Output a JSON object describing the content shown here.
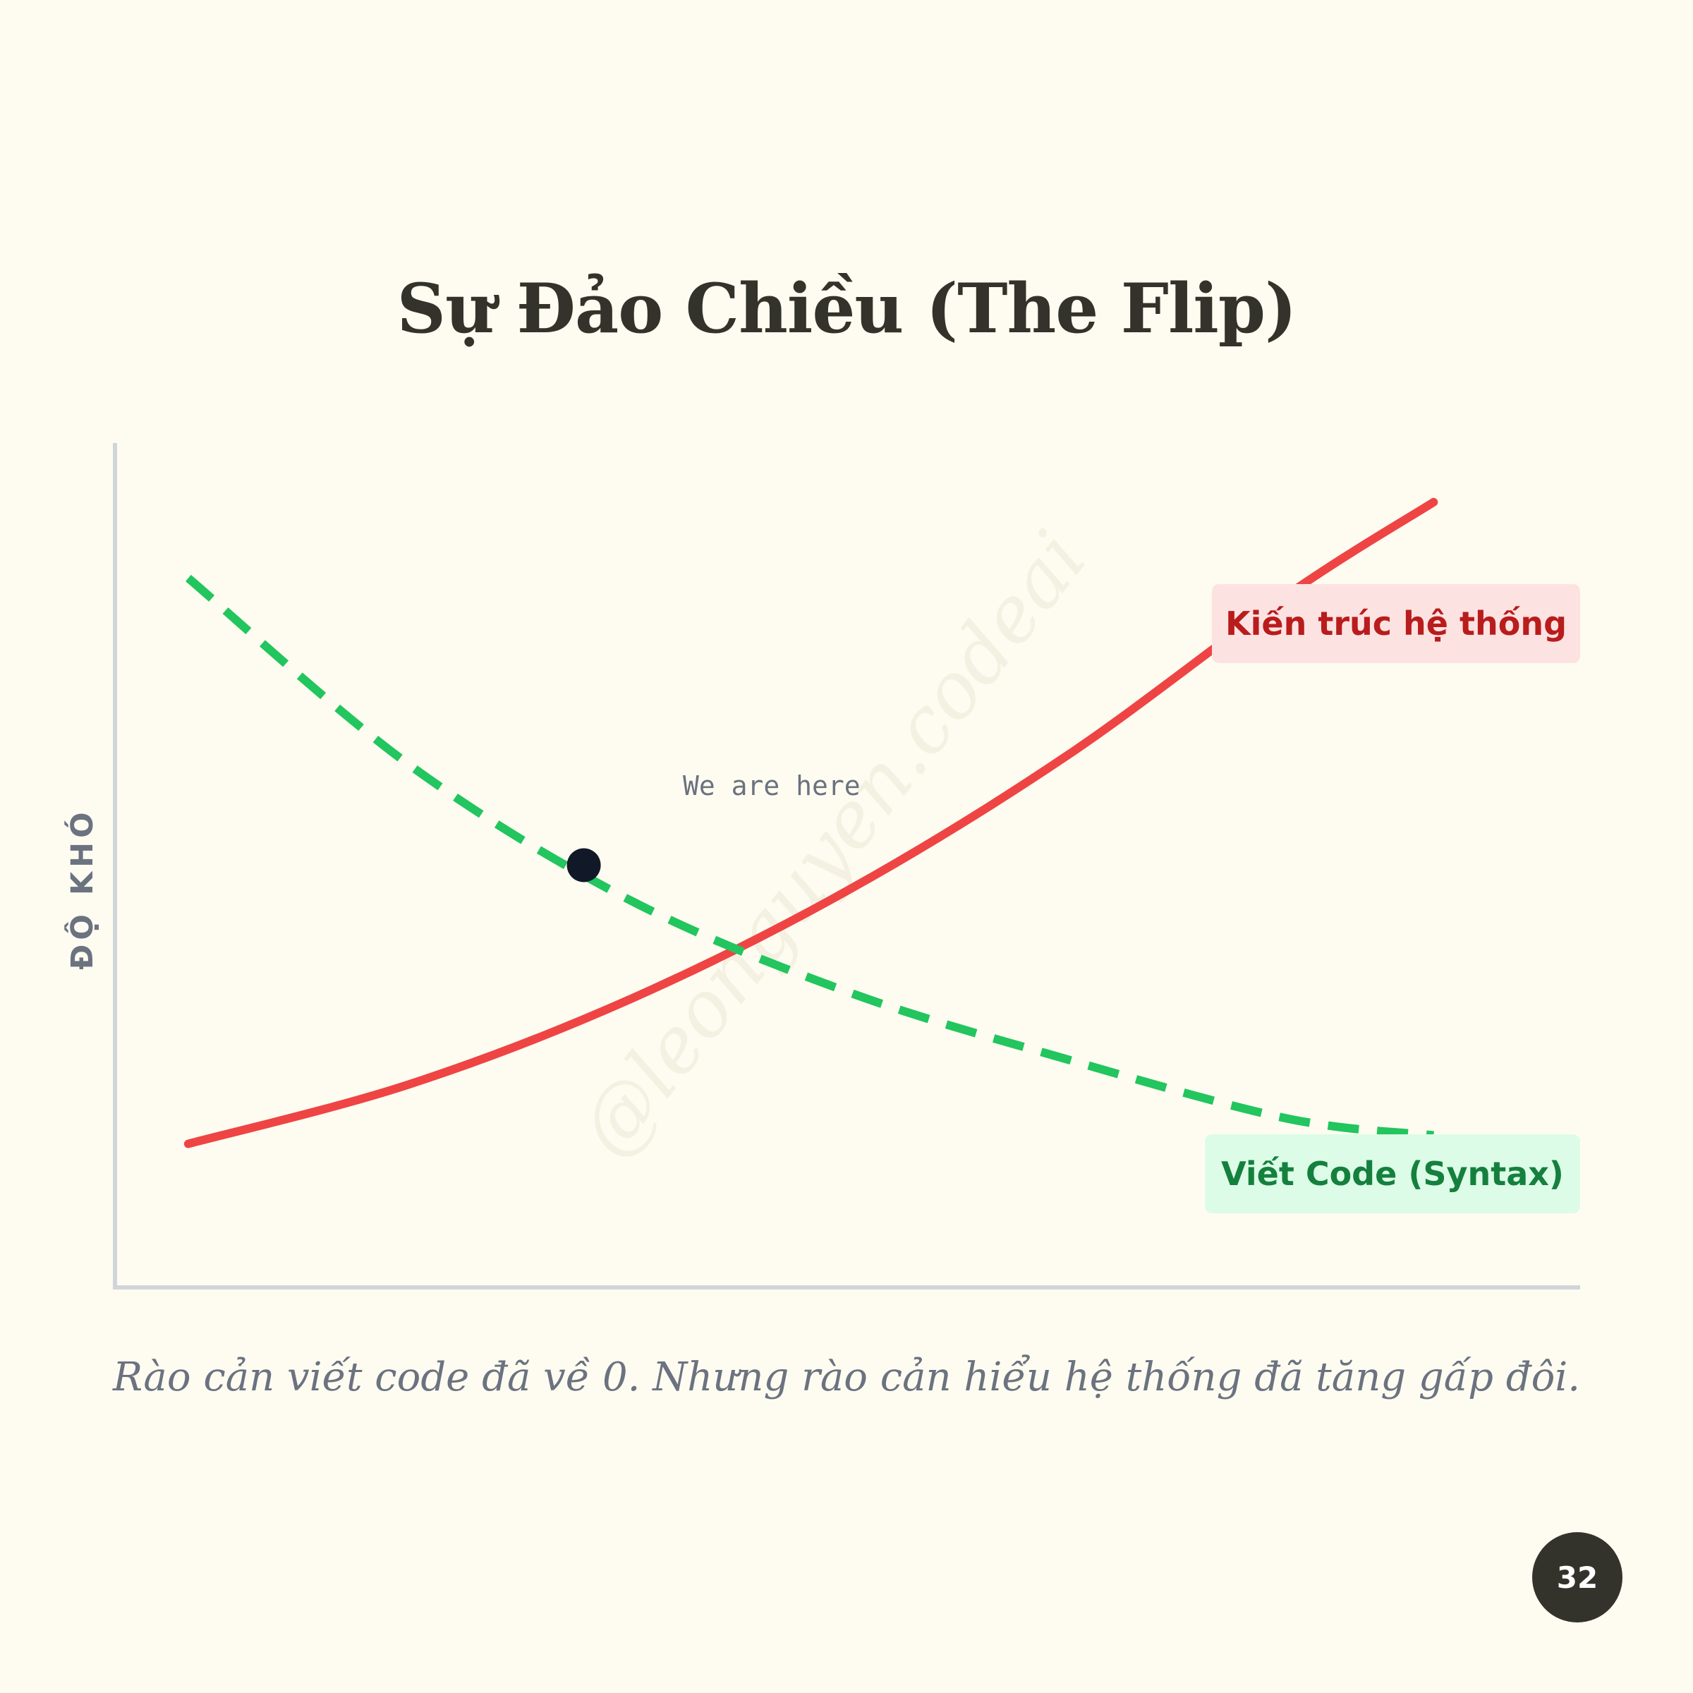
{
  "title": "Sự Đảo Chiều (The Flip)",
  "caption": "Rào cản viết code đã về 0. Nhưng rào cản hiểu hệ thống đã tăng gấp đôi.",
  "page_number": "32",
  "watermark": "@leonguyen.codeai",
  "chart_data": {
    "type": "line",
    "ylabel": "ĐỘ KHÓ",
    "xlabel": "",
    "annotation": {
      "label": "We are here",
      "x": 3.2,
      "y": 5.0
    },
    "xlim": [
      0,
      10
    ],
    "ylim": [
      0,
      10
    ],
    "series": [
      {
        "name": "Kiến trúc hệ thống",
        "style": "solid",
        "color": "#ef4444",
        "x": [
          0.5,
          2,
          3.5,
          5,
          6.5,
          8,
          9
        ],
        "y": [
          1.7,
          2.4,
          3.4,
          4.7,
          6.3,
          8.2,
          9.3
        ]
      },
      {
        "name": "Viết Code (Syntax)",
        "style": "dashed",
        "color": "#22c55e",
        "x": [
          0.5,
          2,
          3.5,
          5,
          6.5,
          8,
          9
        ],
        "y": [
          8.4,
          6.2,
          4.6,
          3.5,
          2.7,
          2.0,
          1.8
        ]
      }
    ],
    "grid": false,
    "legend": "inline-right"
  },
  "colors": {
    "background": "#fefcf0",
    "axis": "#d1d5db",
    "marker": "#111827"
  }
}
